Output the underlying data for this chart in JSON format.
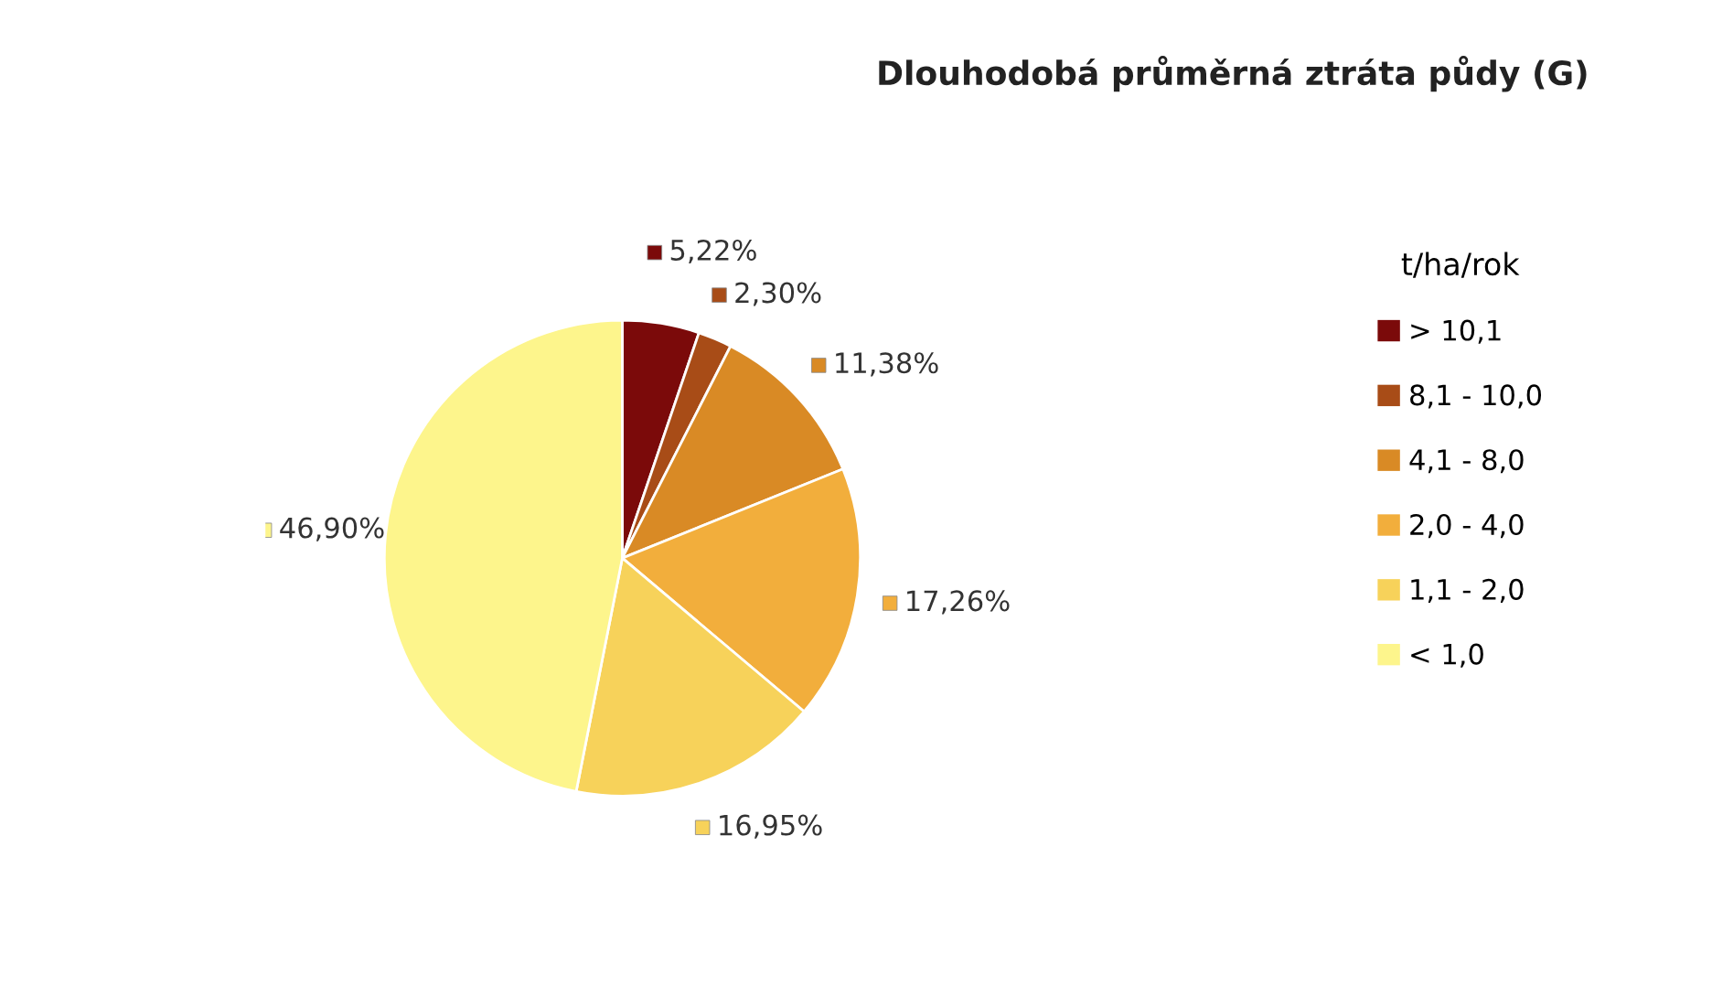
{
  "chart_data": {
    "type": "pie",
    "title": "Dlouhodobá průměrná ztráta půdy (G)",
    "legend_title": "t/ha/rok",
    "categories": [
      "> 10,1",
      "8,1 - 10,0",
      "4,1 - 8,0",
      "2,0 - 4,0",
      "1,1 - 2,0",
      "< 1,0"
    ],
    "values": [
      5.22,
      2.3,
      11.38,
      17.26,
      16.95,
      46.9
    ],
    "colors": [
      "#7b0a0a",
      "#a84c17",
      "#d98a25",
      "#f2ae3c",
      "#f7d25a",
      "#fdf58c"
    ],
    "value_labels": [
      "5,22%",
      "2,30%",
      "11,38%",
      "17,26%",
      "16,95%",
      "46,90%"
    ],
    "legend": "right"
  }
}
